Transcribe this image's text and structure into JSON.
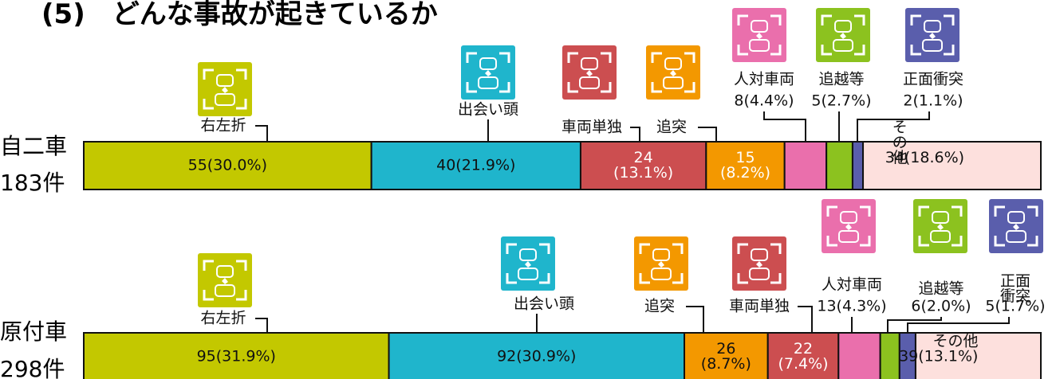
{
  "title": "(5)　どんな事故が起きているか",
  "chart_data": [
    {
      "type": "bar",
      "orientation": "horizontal",
      "stacked": true,
      "categories": [
        "自二車"
      ],
      "total_label": "183件",
      "series": [
        {
          "name": "右左折",
          "color": "#c3c800",
          "values": [
            55
          ],
          "value_labels": [
            "55(30.0%)"
          ]
        },
        {
          "name": "出会い頭",
          "color": "#1fb5cc",
          "values": [
            40
          ],
          "value_labels": [
            "40(21.9%)"
          ]
        },
        {
          "name": "車両単独",
          "color": "#cc4e50",
          "values": [
            24
          ],
          "value_labels": [
            "24\n(13.1%)"
          ]
        },
        {
          "name": "追突",
          "color": "#f39800",
          "values": [
            15
          ],
          "value_labels": [
            "15\n(8.2%)"
          ]
        },
        {
          "name": "人対車両",
          "color": "#ea6fac",
          "values": [
            8
          ],
          "value_labels": [
            "8(4.4%)"
          ]
        },
        {
          "name": "追越等",
          "color": "#8cc21f",
          "values": [
            5
          ],
          "value_labels": [
            "5(2.7%)"
          ]
        },
        {
          "name": "正面衝突",
          "color": "#5a5eac",
          "values": [
            2
          ],
          "value_labels": [
            "2(1.1%)"
          ]
        },
        {
          "name": "その他",
          "color": "#fde0dd",
          "values": [
            34
          ],
          "value_labels": [
            "34(18.6%)"
          ]
        }
      ]
    },
    {
      "type": "bar",
      "orientation": "horizontal",
      "stacked": true,
      "categories": [
        "原付車"
      ],
      "total_label": "298件",
      "series": [
        {
          "name": "右左折",
          "color": "#c3c800",
          "values": [
            95
          ],
          "value_labels": [
            "95(31.9%)"
          ]
        },
        {
          "name": "出会い頭",
          "color": "#1fb5cc",
          "values": [
            92
          ],
          "value_labels": [
            "92(30.9%)"
          ]
        },
        {
          "name": "追突",
          "color": "#f39800",
          "values": [
            26
          ],
          "value_labels": [
            "26\n(8.7%)"
          ]
        },
        {
          "name": "車両単独",
          "color": "#cc4e50",
          "values": [
            22
          ],
          "value_labels": [
            "22\n(7.4%)"
          ]
        },
        {
          "name": "人対車両",
          "color": "#ea6fac",
          "values": [
            13
          ],
          "value_labels": [
            "13(4.3%)"
          ]
        },
        {
          "name": "追越等",
          "color": "#8cc21f",
          "values": [
            6
          ],
          "value_labels": [
            "6(2.0%)"
          ]
        },
        {
          "name": "正面衝突",
          "color": "#5a5eac",
          "values": [
            5
          ],
          "value_labels": [
            "5(1.7%)"
          ]
        },
        {
          "name": "その他",
          "color": "#fde0dd",
          "values": [
            39
          ],
          "value_labels": [
            "39(13.1%)"
          ]
        }
      ]
    }
  ]
}
